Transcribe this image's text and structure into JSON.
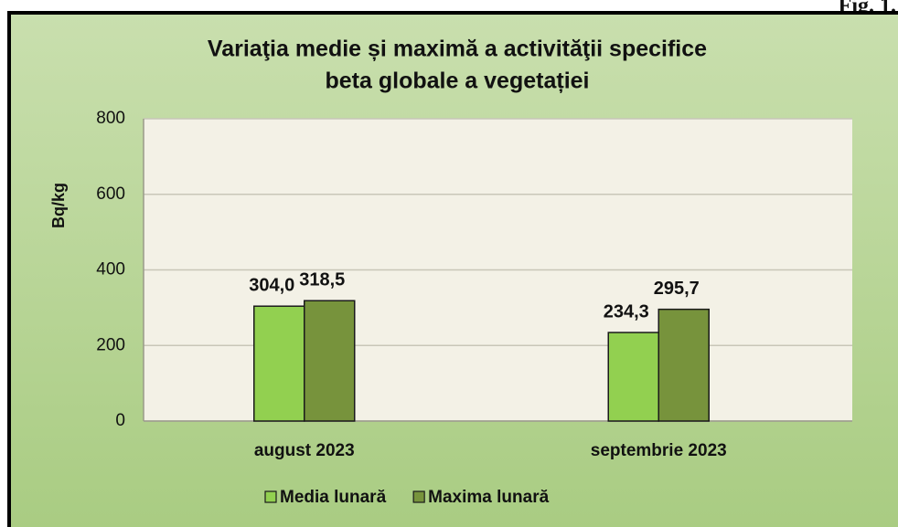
{
  "annotation": "Fig. 1.",
  "chart_data": {
    "type": "bar",
    "title": [
      "Variaţia medie și maximă a activităţii specifice",
      "beta globale a vegetației"
    ],
    "y_label": "Bq/kg",
    "categories": [
      "august 2023",
      "septembrie 2023"
    ],
    "series": [
      {
        "name": "Media lunară",
        "color": "#92d050",
        "values": [
          304.0,
          234.3
        ],
        "value_labels": [
          "304,0",
          "234,3"
        ]
      },
      {
        "name": "Maxima lunară",
        "color": "#77933c",
        "values": [
          318.5,
          295.7
        ],
        "value_labels": [
          "318,5",
          "295,7"
        ]
      }
    ],
    "ylim": [
      0,
      800
    ],
    "yticks": [
      0,
      200,
      400,
      600,
      800
    ],
    "grid": true,
    "legend": "bottom"
  }
}
